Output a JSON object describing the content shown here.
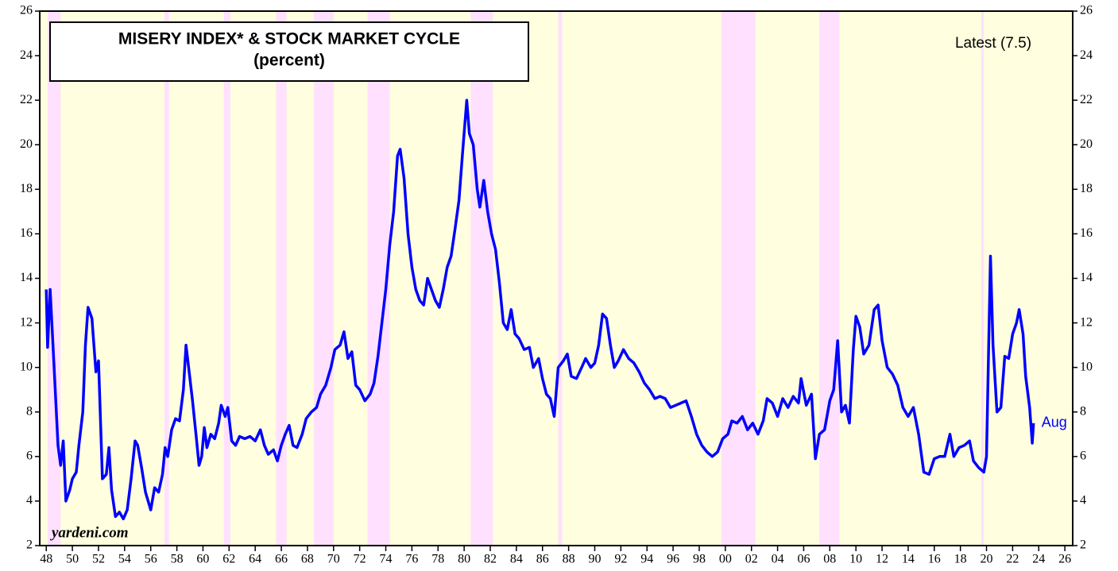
{
  "chart_data": {
    "type": "line",
    "title": "MISERY INDEX* & STOCK MARKET CYCLE",
    "subtitle": "(percent)",
    "annotation": "Latest (7.5)",
    "end_label": "Aug",
    "source": "yardeni.com",
    "background_color": "#ffffe0",
    "bear_market_color": "#ffe0ff",
    "bear_markets": [
      {
        "start": 1948.1,
        "end": 1949.1
      },
      {
        "start": 1957.05,
        "end": 1957.4
      },
      {
        "start": 1961.6,
        "end": 1962.1
      },
      {
        "start": 1965.6,
        "end": 1966.4
      },
      {
        "start": 1968.5,
        "end": 1970.0
      },
      {
        "start": 1972.6,
        "end": 1974.3
      },
      {
        "start": 1980.5,
        "end": 1982.2
      },
      {
        "start": 1987.2,
        "end": 1987.5
      },
      {
        "start": 1999.7,
        "end": 2002.3
      },
      {
        "start": 2007.2,
        "end": 2008.75
      },
      {
        "start": 2019.6,
        "end": 2019.8
      }
    ],
    "xlim": [
      1947.5,
      2026.6
    ],
    "ylim": [
      2,
      26
    ],
    "yticks": [
      2,
      4,
      6,
      8,
      10,
      12,
      14,
      16,
      18,
      20,
      22,
      24,
      26
    ],
    "xticks": [
      {
        "value": 1948,
        "label": "48"
      },
      {
        "value": 1950,
        "label": "50"
      },
      {
        "value": 1952,
        "label": "52"
      },
      {
        "value": 1954,
        "label": "54"
      },
      {
        "value": 1956,
        "label": "56"
      },
      {
        "value": 1958,
        "label": "58"
      },
      {
        "value": 1960,
        "label": "60"
      },
      {
        "value": 1962,
        "label": "62"
      },
      {
        "value": 1964,
        "label": "64"
      },
      {
        "value": 1966,
        "label": "66"
      },
      {
        "value": 1968,
        "label": "68"
      },
      {
        "value": 1970,
        "label": "70"
      },
      {
        "value": 1972,
        "label": "72"
      },
      {
        "value": 1974,
        "label": "74"
      },
      {
        "value": 1976,
        "label": "76"
      },
      {
        "value": 1978,
        "label": "78"
      },
      {
        "value": 1980,
        "label": "80"
      },
      {
        "value": 1982,
        "label": "82"
      },
      {
        "value": 1984,
        "label": "84"
      },
      {
        "value": 1986,
        "label": "86"
      },
      {
        "value": 1988,
        "label": "88"
      },
      {
        "value": 1990,
        "label": "90"
      },
      {
        "value": 1992,
        "label": "92"
      },
      {
        "value": 1994,
        "label": "94"
      },
      {
        "value": 1996,
        "label": "96"
      },
      {
        "value": 1998,
        "label": "98"
      },
      {
        "value": 2000,
        "label": "00"
      },
      {
        "value": 2002,
        "label": "02"
      },
      {
        "value": 2004,
        "label": "04"
      },
      {
        "value": 2006,
        "label": "06"
      },
      {
        "value": 2008,
        "label": "08"
      },
      {
        "value": 2010,
        "label": "10"
      },
      {
        "value": 2012,
        "label": "12"
      },
      {
        "value": 2014,
        "label": "14"
      },
      {
        "value": 2016,
        "label": "16"
      },
      {
        "value": 2018,
        "label": "18"
      },
      {
        "value": 2020,
        "label": "20"
      },
      {
        "value": 2022,
        "label": "22"
      },
      {
        "value": 2024,
        "label": "24"
      },
      {
        "value": 2026,
        "label": "26"
      }
    ],
    "series": [
      {
        "color": "#0000ff",
        "x": [
          1948.0,
          1948.1,
          1948.3,
          1948.6,
          1948.9,
          1949.1,
          1949.3,
          1949.5,
          1949.8,
          1950.0,
          1950.3,
          1950.5,
          1950.8,
          1951.0,
          1951.2,
          1951.5,
          1951.8,
          1952.0,
          1952.3,
          1952.6,
          1952.8,
          1953.0,
          1953.3,
          1953.6,
          1953.9,
          1954.2,
          1954.5,
          1954.8,
          1955.0,
          1955.3,
          1955.6,
          1955.8,
          1956.0,
          1956.3,
          1956.6,
          1956.9,
          1957.1,
          1957.3,
          1957.6,
          1957.9,
          1958.2,
          1958.5,
          1958.7,
          1958.9,
          1959.2,
          1959.5,
          1959.7,
          1959.9,
          1960.1,
          1960.3,
          1960.6,
          1960.9,
          1961.2,
          1961.4,
          1961.7,
          1961.9,
          1962.2,
          1962.5,
          1962.8,
          1963.2,
          1963.6,
          1964.0,
          1964.4,
          1964.7,
          1965.0,
          1965.4,
          1965.7,
          1966.0,
          1966.3,
          1966.6,
          1966.9,
          1967.2,
          1967.6,
          1967.9,
          1968.3,
          1968.7,
          1969.0,
          1969.4,
          1969.8,
          1970.1,
          1970.5,
          1970.8,
          1971.1,
          1971.4,
          1971.7,
          1972.0,
          1972.4,
          1972.8,
          1973.1,
          1973.4,
          1973.7,
          1974.0,
          1974.3,
          1974.6,
          1974.9,
          1975.1,
          1975.4,
          1975.7,
          1976.0,
          1976.3,
          1976.6,
          1976.9,
          1977.2,
          1977.5,
          1977.8,
          1978.1,
          1978.4,
          1978.7,
          1979.0,
          1979.3,
          1979.6,
          1979.9,
          1980.2,
          1980.4,
          1980.7,
          1981.0,
          1981.2,
          1981.5,
          1981.8,
          1982.1,
          1982.4,
          1982.7,
          1983.0,
          1983.3,
          1983.6,
          1983.9,
          1984.2,
          1984.6,
          1985.0,
          1985.3,
          1985.7,
          1986.0,
          1986.3,
          1986.6,
          1986.9,
          1987.2,
          1987.6,
          1987.9,
          1988.2,
          1988.6,
          1989.0,
          1989.3,
          1989.7,
          1990.0,
          1990.3,
          1990.6,
          1990.9,
          1991.2,
          1991.5,
          1991.8,
          1992.2,
          1992.6,
          1993.0,
          1993.4,
          1993.8,
          1994.2,
          1994.6,
          1995.0,
          1995.4,
          1995.8,
          1996.2,
          1996.6,
          1997.0,
          1997.4,
          1997.8,
          1998.2,
          1998.6,
          1999.0,
          1999.4,
          1999.8,
          2000.2,
          2000.5,
          2000.9,
          2001.3,
          2001.7,
          2002.1,
          2002.5,
          2002.9,
          2003.2,
          2003.6,
          2004.0,
          2004.4,
          2004.8,
          2005.2,
          2005.6,
          2005.8,
          2006.2,
          2006.6,
          2006.9,
          2007.2,
          2007.6,
          2008.0,
          2008.3,
          2008.6,
          2008.9,
          2009.2,
          2009.5,
          2009.8,
          2010.0,
          2010.3,
          2010.6,
          2011.0,
          2011.4,
          2011.7,
          2012.0,
          2012.4,
          2012.8,
          2013.2,
          2013.6,
          2014.0,
          2014.4,
          2014.8,
          2015.2,
          2015.6,
          2016.0,
          2016.4,
          2016.8,
          2017.2,
          2017.5,
          2017.9,
          2018.3,
          2018.7,
          2019.0,
          2019.4,
          2019.8,
          2020.0,
          2020.3,
          2020.5,
          2020.8,
          2021.1,
          2021.4,
          2021.7,
          2022.0,
          2022.3,
          2022.5,
          2022.8,
          2023.0,
          2023.3,
          2023.5,
          2023.6
        ],
        "values": [
          13.5,
          10.9,
          13.5,
          10.0,
          6.5,
          5.6,
          6.7,
          4.0,
          4.5,
          5.0,
          5.3,
          6.5,
          8.0,
          11.0,
          12.7,
          12.2,
          9.8,
          10.3,
          5.0,
          5.2,
          6.4,
          4.5,
          3.3,
          3.5,
          3.2,
          3.6,
          5.0,
          6.7,
          6.5,
          5.5,
          4.4,
          4.0,
          3.6,
          4.6,
          4.4,
          5.2,
          6.4,
          6.0,
          7.2,
          7.7,
          7.6,
          9.0,
          11.0,
          10.0,
          8.5,
          6.8,
          5.6,
          6.0,
          7.3,
          6.4,
          7.0,
          6.8,
          7.5,
          8.3,
          7.8,
          8.2,
          6.7,
          6.5,
          6.9,
          6.8,
          6.9,
          6.7,
          7.2,
          6.5,
          6.1,
          6.3,
          5.8,
          6.5,
          7.0,
          7.4,
          6.5,
          6.4,
          7.0,
          7.7,
          8.0,
          8.2,
          8.8,
          9.2,
          10.0,
          10.8,
          11.0,
          11.6,
          10.4,
          10.7,
          9.2,
          9.0,
          8.5,
          8.8,
          9.3,
          10.5,
          12.0,
          13.5,
          15.5,
          17.0,
          19.5,
          19.8,
          18.5,
          16.0,
          14.5,
          13.5,
          13.0,
          12.8,
          14.0,
          13.5,
          13.0,
          12.7,
          13.5,
          14.5,
          15.0,
          16.2,
          17.5,
          19.8,
          22.0,
          20.5,
          20.0,
          18.0,
          17.2,
          18.4,
          17.0,
          16.0,
          15.3,
          13.8,
          12.0,
          11.7,
          12.6,
          11.5,
          11.3,
          10.8,
          10.9,
          10.0,
          10.4,
          9.5,
          8.8,
          8.6,
          7.8,
          10.0,
          10.3,
          10.6,
          9.6,
          9.5,
          10.0,
          10.4,
          10.0,
          10.2,
          11.0,
          12.4,
          12.2,
          11.0,
          10.0,
          10.3,
          10.8,
          10.4,
          10.2,
          9.8,
          9.3,
          9.0,
          8.6,
          8.7,
          8.6,
          8.2,
          8.3,
          8.4,
          8.5,
          7.8,
          7.0,
          6.5,
          6.2,
          6.0,
          6.2,
          6.8,
          7.0,
          7.6,
          7.5,
          7.8,
          7.2,
          7.5,
          7.0,
          7.6,
          8.6,
          8.4,
          7.8,
          8.6,
          8.2,
          8.7,
          8.4,
          9.5,
          8.3,
          8.8,
          5.9,
          7.0,
          7.2,
          8.5,
          9.0,
          11.2,
          8.0,
          8.3,
          7.5,
          10.8,
          12.3,
          11.8,
          10.6,
          11.0,
          12.6,
          12.8,
          11.2,
          10.0,
          9.7,
          9.2,
          8.2,
          7.8,
          8.2,
          7.0,
          5.3,
          5.2,
          5.9,
          6.0,
          6.0,
          7.0,
          6.0,
          6.4,
          6.5,
          6.7,
          5.8,
          5.5,
          5.3,
          6.0,
          15.0,
          11.0,
          8.0,
          8.2,
          10.5,
          10.4,
          11.5,
          12.0,
          12.6,
          11.5,
          9.6,
          8.2,
          6.6,
          7.5
        ]
      }
    ]
  }
}
